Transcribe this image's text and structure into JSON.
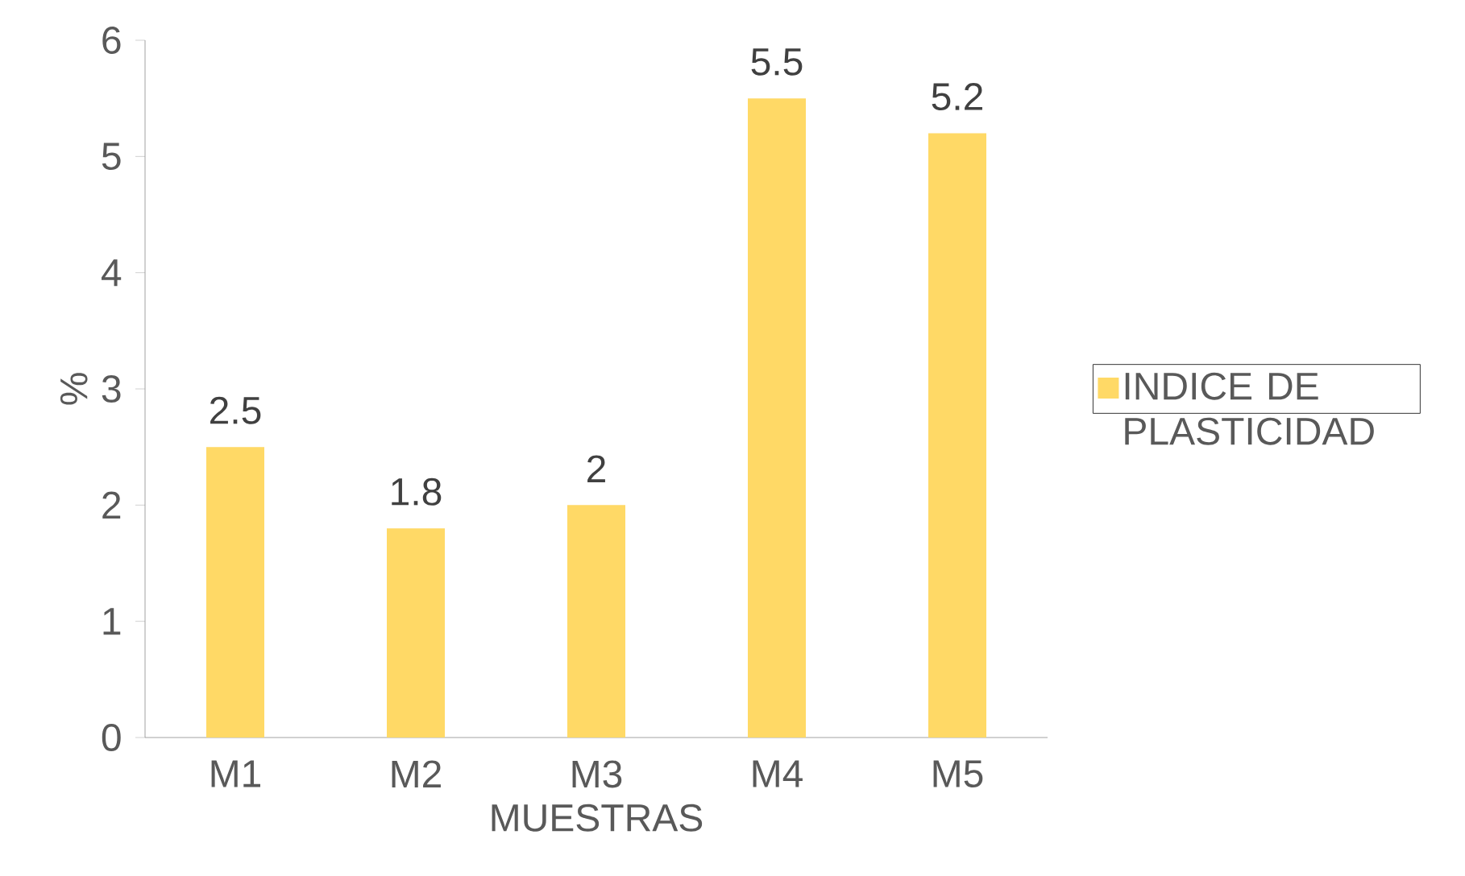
{
  "chart_data": {
    "type": "bar",
    "xlabel": "MUESTRAS",
    "ylabel": "%",
    "categories": [
      "M1",
      "M2",
      "M3",
      "M4",
      "M5"
    ],
    "series": [
      {
        "name": "INDICE DE PLASTICIDAD",
        "color": "#ffd966",
        "values": [
          2.5,
          1.8,
          2,
          5.5,
          5.2
        ]
      }
    ],
    "ylim": [
      0,
      6
    ],
    "yticks": [
      0,
      1,
      2,
      3,
      4,
      5,
      6
    ],
    "data_labels": true,
    "legend": "right",
    "grid": false
  }
}
